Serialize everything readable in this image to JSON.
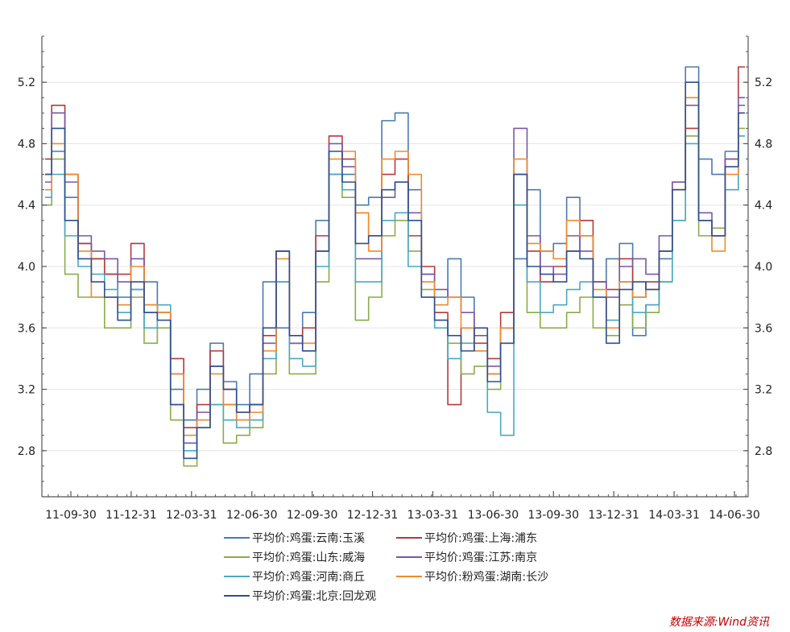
{
  "chart_data": {
    "type": "line",
    "title": "",
    "xlabel": "",
    "ylabel": "",
    "x_tick_labels": [
      "11-09-30",
      "11-12-31",
      "12-03-31",
      "12-06-30",
      "12-09-30",
      "12-12-31",
      "13-03-31",
      "13-06-30",
      "13-09-30",
      "13-12-31",
      "14-03-31",
      "14-06-30"
    ],
    "y_ticks": [
      "2.8",
      "3.2",
      "3.6",
      "4.0",
      "4.4",
      "4.8",
      "5.2"
    ],
    "ylim": [
      2.5,
      5.5
    ],
    "grid": "horizontal",
    "legend_position": "bottom",
    "series": [
      {
        "name": "平均价:鸡蛋:云南:玉溪",
        "color": "#4a7ab0",
        "values": [
          4.6,
          4.75,
          4.45,
          4.15,
          4.05,
          3.95,
          3.8,
          3.85,
          3.9,
          3.7,
          3.2,
          3.0,
          3.2,
          3.5,
          3.25,
          3.1,
          3.3,
          3.9,
          3.6,
          3.5,
          3.7,
          4.3,
          4.6,
          4.6,
          4.4,
          4.45,
          4.95,
          5.0,
          4.5,
          3.95,
          3.8,
          4.05,
          3.8,
          3.6,
          3.3,
          3.6,
          4.05,
          4.5,
          4.1,
          4.15,
          4.45,
          4.2,
          3.9,
          4.05,
          4.15,
          3.55,
          3.75,
          4.05,
          4.55,
          5.3,
          4.7,
          4.6,
          4.75,
          5.05
        ]
      },
      {
        "name": "平均价:鸡蛋:上海:浦东",
        "color": "#b33a3a",
        "values": [
          4.7,
          5.05,
          4.6,
          4.15,
          4.05,
          3.95,
          3.95,
          4.15,
          3.75,
          3.7,
          3.4,
          2.95,
          3.1,
          3.45,
          3.2,
          3.05,
          3.1,
          3.55,
          4.1,
          3.5,
          3.6,
          4.2,
          4.85,
          4.7,
          4.35,
          4.2,
          4.6,
          4.7,
          4.2,
          4.0,
          3.7,
          3.1,
          3.6,
          3.5,
          3.4,
          3.7,
          4.6,
          4.1,
          3.9,
          4.0,
          4.1,
          4.3,
          3.9,
          3.85,
          4.05,
          3.8,
          3.9,
          4.1,
          4.5,
          4.9,
          4.3,
          4.2,
          4.7,
          5.3
        ]
      },
      {
        "name": "平均价:鸡蛋:山东:威海",
        "color": "#8aac48",
        "values": [
          4.4,
          4.7,
          3.95,
          3.8,
          3.8,
          3.6,
          3.6,
          3.8,
          3.5,
          3.6,
          3.0,
          2.7,
          2.95,
          3.1,
          2.85,
          2.9,
          2.95,
          3.3,
          3.9,
          3.3,
          3.3,
          3.9,
          4.6,
          4.45,
          3.65,
          3.8,
          4.2,
          4.3,
          4.1,
          3.85,
          3.65,
          3.5,
          3.3,
          3.35,
          3.2,
          3.5,
          4.4,
          3.7,
          3.6,
          3.6,
          3.7,
          3.8,
          3.6,
          3.55,
          3.75,
          3.6,
          3.7,
          3.9,
          4.3,
          4.85,
          4.2,
          4.25,
          4.5,
          4.9
        ]
      },
      {
        "name": "平均价:鸡蛋:江苏:南京",
        "color": "#7a57a6",
        "values": [
          4.55,
          5.0,
          4.55,
          4.2,
          4.1,
          4.05,
          3.9,
          4.05,
          3.7,
          3.7,
          3.3,
          2.85,
          3.05,
          3.35,
          3.1,
          3.0,
          3.1,
          3.5,
          4.1,
          3.5,
          3.45,
          4.1,
          4.8,
          4.65,
          4.05,
          4.05,
          4.45,
          4.55,
          4.35,
          3.95,
          3.85,
          3.8,
          3.7,
          3.55,
          3.35,
          3.6,
          4.9,
          4.2,
          4.0,
          3.95,
          4.2,
          4.1,
          3.9,
          3.8,
          4.0,
          4.05,
          3.95,
          4.2,
          4.55,
          5.05,
          4.35,
          4.2,
          4.7,
          5.1
        ]
      },
      {
        "name": "平均价:鸡蛋:河南:商丘",
        "color": "#4aa8c4",
        "values": [
          4.45,
          4.6,
          4.2,
          4.0,
          3.95,
          3.85,
          3.7,
          3.85,
          3.6,
          3.75,
          3.1,
          2.8,
          3.0,
          3.1,
          3.0,
          2.95,
          3.0,
          3.4,
          3.9,
          3.4,
          3.35,
          4.0,
          4.6,
          4.5,
          3.9,
          3.9,
          4.3,
          4.35,
          4.0,
          3.8,
          3.6,
          3.4,
          3.5,
          3.45,
          3.05,
          2.9,
          4.4,
          3.9,
          3.7,
          3.75,
          3.85,
          3.9,
          3.8,
          3.65,
          3.9,
          3.7,
          3.75,
          3.9,
          4.3,
          4.8,
          4.3,
          4.2,
          4.5,
          4.85
        ]
      },
      {
        "name": "平均价:粉鸡蛋:湖南:长沙",
        "color": "#f08a2e",
        "values": [
          4.5,
          4.8,
          4.6,
          4.1,
          3.8,
          3.8,
          3.75,
          4.0,
          3.75,
          3.7,
          3.3,
          2.9,
          3.0,
          3.3,
          3.1,
          3.0,
          3.05,
          3.45,
          4.05,
          3.55,
          3.5,
          4.1,
          4.7,
          4.75,
          4.35,
          4.1,
          4.7,
          4.75,
          4.6,
          3.9,
          3.75,
          3.8,
          3.6,
          3.45,
          3.3,
          3.6,
          4.7,
          4.15,
          4.1,
          4.05,
          4.3,
          4.2,
          3.85,
          3.6,
          3.9,
          3.8,
          3.85,
          4.1,
          4.5,
          5.1,
          4.3,
          4.1,
          4.6,
          5.0
        ]
      },
      {
        "name": "平均价:鸡蛋:北京:回龙观",
        "color": "#2e4f8f",
        "values": [
          4.6,
          4.9,
          4.3,
          4.05,
          3.9,
          3.8,
          3.65,
          3.9,
          3.7,
          3.65,
          3.1,
          2.75,
          2.95,
          3.35,
          3.2,
          3.05,
          3.1,
          3.6,
          4.1,
          3.55,
          3.45,
          4.1,
          4.75,
          4.55,
          4.15,
          4.2,
          4.5,
          4.55,
          4.3,
          3.8,
          3.65,
          3.55,
          3.45,
          3.6,
          3.25,
          3.5,
          4.6,
          4.0,
          3.95,
          3.9,
          4.1,
          4.05,
          3.8,
          3.5,
          3.85,
          3.9,
          3.85,
          4.1,
          4.5,
          5.2,
          4.3,
          4.2,
          4.65,
          5.0
        ]
      }
    ]
  },
  "source_label": "数据来源:Wind资讯"
}
